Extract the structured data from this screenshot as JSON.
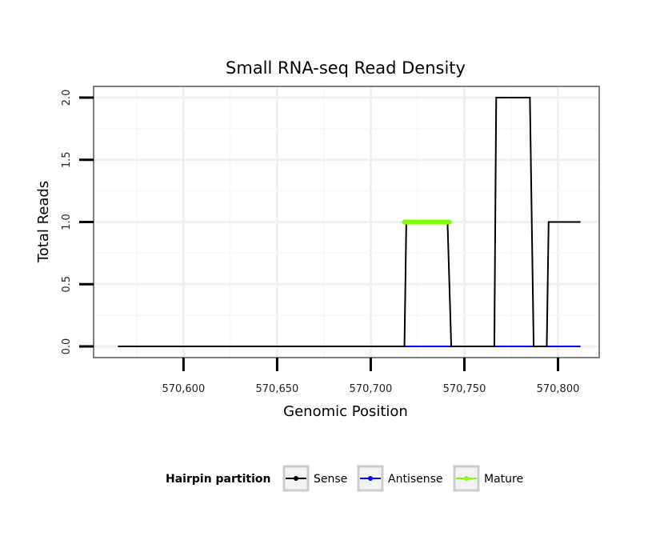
{
  "chart_data": {
    "type": "line",
    "title": "Small RNA-seq Read Density",
    "xlabel": "Genomic Position",
    "ylabel": "Total Reads",
    "xlim": [
      570552,
      570822
    ],
    "ylim": [
      -0.09,
      2.09
    ],
    "x_ticks": [
      570600,
      570650,
      570700,
      570750,
      570800
    ],
    "x_tick_labels": [
      "570,600",
      "570,650",
      "570,700",
      "570,750",
      "570,800"
    ],
    "y_ticks": [
      0.0,
      0.5,
      1.0,
      1.5,
      2.0
    ],
    "y_tick_labels": [
      "0.0",
      "0.5",
      "1.0",
      "1.5",
      "2.0"
    ],
    "grid": true,
    "legend": {
      "title": "Hairpin partition",
      "position": "bottom",
      "entries": [
        {
          "label": "Sense",
          "color": "#000000"
        },
        {
          "label": "Antisense",
          "color": "#0000ff"
        },
        {
          "label": "Mature",
          "color": "#7fff00"
        }
      ]
    },
    "series": [
      {
        "name": "Sense",
        "color": "#000000",
        "x": [
          570565,
          570718,
          570719,
          570741,
          570743,
          570766,
          570767,
          570785,
          570787,
          570794,
          570795,
          570812
        ],
        "y": [
          0,
          0,
          1,
          1,
          0,
          0,
          2,
          2,
          0,
          0,
          1,
          1
        ]
      },
      {
        "name": "Antisense",
        "color": "#0000ff",
        "x": [
          570718,
          570812
        ],
        "y": [
          0,
          0
        ]
      },
      {
        "name": "Mature",
        "color": "#7fff00",
        "x": [
          570718,
          570742
        ],
        "y": [
          1,
          1
        ]
      }
    ]
  }
}
